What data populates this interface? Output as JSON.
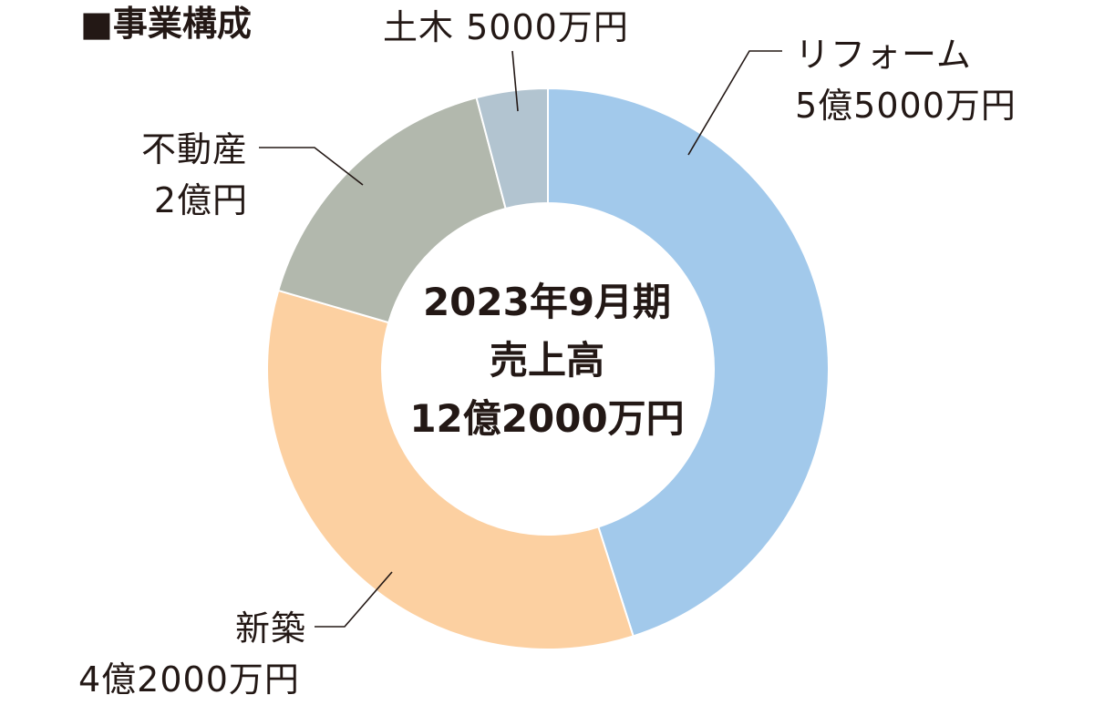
{
  "title": "■事業構成",
  "center": {
    "line1": "2023年9月期",
    "line2": "売上高",
    "line3": "12億2000万円"
  },
  "chart_data": {
    "type": "pie",
    "donut": true,
    "total_label": "12億2000万円",
    "start_angle": "12 o'clock",
    "direction": "clockwise",
    "slices": [
      {
        "name": "リフォーム",
        "value_label": "5億5000万円",
        "value": 55000,
        "color": "#a2c9eb"
      },
      {
        "name": "新築",
        "value_label": "4億2000万円",
        "value": 42000,
        "color": "#fcd0a1"
      },
      {
        "name": "不動産",
        "value_label": "2億円",
        "value": 20000,
        "color": "#b2b8ad"
      },
      {
        "name": "土木",
        "value_label": "5000万円",
        "value": 5000,
        "color": "#b2c4d0"
      }
    ]
  }
}
